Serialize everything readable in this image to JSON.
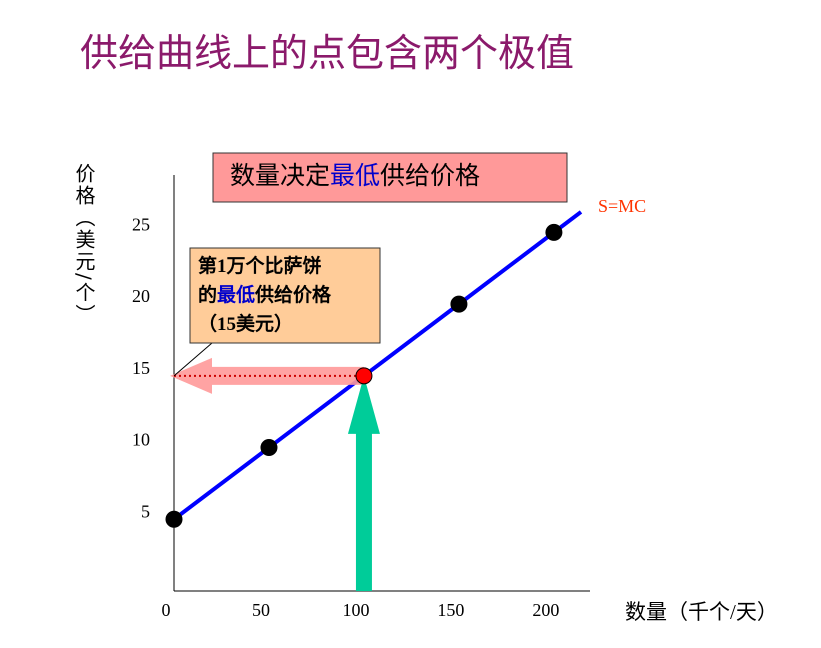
{
  "title": "供给曲线上的点包含两个极值",
  "chart_data": {
    "type": "line",
    "xlabel": "数量（千个/天）",
    "ylabel": "价格（美元/个）",
    "x": [
      0,
      50,
      100,
      150,
      200
    ],
    "series": [
      {
        "name": "S=MC",
        "color": "#0000ff",
        "values": [
          5,
          10,
          15,
          20,
          25
        ],
        "marker_colors": [
          "#000000",
          "#000000",
          "#ff0000",
          "#000000",
          "#000000"
        ]
      }
    ],
    "xlim": [
      0,
      219
    ],
    "ylim": [
      0,
      29
    ],
    "xticks": [
      0,
      50,
      100,
      150,
      200
    ],
    "yticks": [
      5,
      10,
      15,
      20,
      25
    ],
    "annotations": [
      {
        "parts": [
          "数量决定",
          "最低",
          "供给价格"
        ]
      },
      {
        "lines": [
          [
            "第1万个比萨饼"
          ],
          [
            "的",
            "最低",
            "供给价格"
          ],
          [
            "（15美元）"
          ]
        ]
      }
    ]
  }
}
